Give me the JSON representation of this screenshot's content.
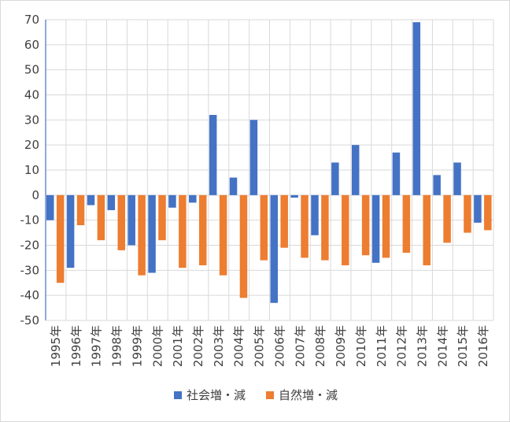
{
  "chart_data": {
    "type": "bar",
    "categories": [
      "1995年",
      "1996年",
      "1997年",
      "1998年",
      "1999年",
      "2000年",
      "2001年",
      "2002年",
      "2003年",
      "2004年",
      "2005年",
      "2006年",
      "2007年",
      "2008年",
      "2009年",
      "2010年",
      "2011年",
      "2012年",
      "2013年",
      "2014年",
      "2015年",
      "2016年"
    ],
    "series": [
      {
        "name": "社会増・減",
        "color": "#4472C4",
        "values": [
          -10,
          -29,
          -4,
          -6,
          -20,
          -31,
          -5,
          -3,
          32,
          7,
          30,
          -43,
          -1,
          -16,
          13,
          20,
          -27,
          17,
          69,
          8,
          13,
          -11
        ]
      },
      {
        "name": "自然増・減",
        "color": "#ED7D31",
        "values": [
          -35,
          -12,
          -18,
          -22,
          -32,
          -18,
          -29,
          -28,
          -32,
          -41,
          -26,
          -21,
          -25,
          -26,
          -28,
          -24,
          -25,
          -23,
          -28,
          -19,
          -15,
          -14
        ]
      }
    ],
    "ylim": [
      -50,
      70
    ],
    "yticks": [
      70,
      60,
      50,
      40,
      30,
      20,
      10,
      0,
      -10,
      -20,
      -30,
      -40,
      -50
    ],
    "grid": true,
    "legend_position": "bottom"
  }
}
